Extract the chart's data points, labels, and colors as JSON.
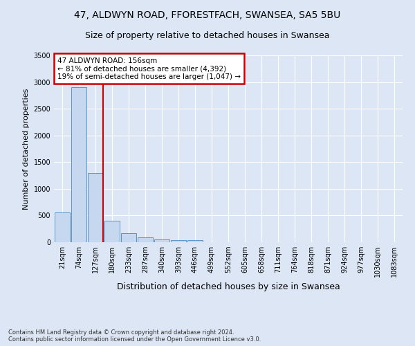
{
  "title_line1": "47, ALDWYN ROAD, FFORESTFACH, SWANSEA, SA5 5BU",
  "title_line2": "Size of property relative to detached houses in Swansea",
  "xlabel": "Distribution of detached houses by size in Swansea",
  "ylabel": "Number of detached properties",
  "footnote": "Contains HM Land Registry data © Crown copyright and database right 2024.\nContains public sector information licensed under the Open Government Licence v3.0.",
  "categories": [
    "21sqm",
    "74sqm",
    "127sqm",
    "180sqm",
    "233sqm",
    "287sqm",
    "340sqm",
    "393sqm",
    "446sqm",
    "499sqm",
    "552sqm",
    "605sqm",
    "658sqm",
    "711sqm",
    "764sqm",
    "818sqm",
    "871sqm",
    "924sqm",
    "977sqm",
    "1030sqm",
    "1083sqm"
  ],
  "values": [
    560,
    2900,
    1300,
    400,
    165,
    90,
    55,
    45,
    40,
    0,
    0,
    0,
    0,
    0,
    0,
    0,
    0,
    0,
    0,
    0,
    0
  ],
  "bar_color": "#c5d8f0",
  "bar_edge_color": "#5a95c8",
  "vline_color": "#cc0000",
  "vline_x_index": 2,
  "annotation_title": "47 ALDWYN ROAD: 156sqm",
  "annotation_line2": "← 81% of detached houses are smaller (4,392)",
  "annotation_line3": "19% of semi-detached houses are larger (1,047) →",
  "annotation_box_color": "#cc0000",
  "annotation_fill": "#ffffff",
  "ylim": [
    0,
    3500
  ],
  "yticks": [
    0,
    500,
    1000,
    1500,
    2000,
    2500,
    3000,
    3500
  ],
  "background_color": "#dce6f5",
  "plot_bg_color": "#dce6f5",
  "grid_color": "#ffffff",
  "title_fontsize": 10,
  "subtitle_fontsize": 9,
  "xlabel_fontsize": 9,
  "ylabel_fontsize": 8,
  "tick_fontsize": 7,
  "footnote_fontsize": 6
}
